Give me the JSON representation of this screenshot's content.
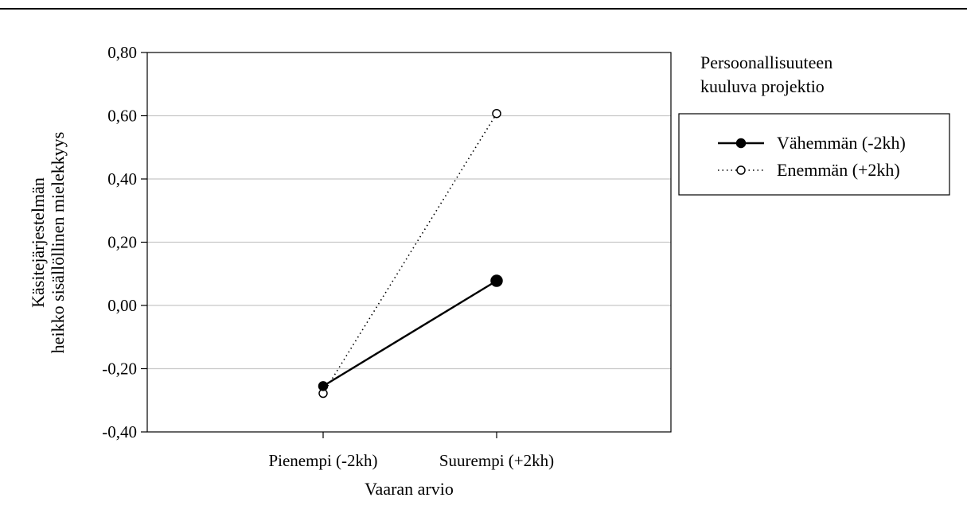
{
  "chart_data": {
    "type": "line",
    "categories": [
      "Pienempi (-2kh)",
      "Suurempi (+2kh)"
    ],
    "series": [
      {
        "name": "Vähemmän (-2kh)",
        "values": [
          -0.255,
          0.078
        ],
        "style": "solid",
        "marker": "filled-circle",
        "color": "#000000"
      },
      {
        "name": "Enemmän (+2kh)",
        "values": [
          -0.278,
          0.607
        ],
        "style": "dotted",
        "marker": "open-circle",
        "color": "#000000"
      }
    ],
    "xlabel": "Vaaran arvio",
    "ylabel_lines": [
      "Käsitejärjestelmän",
      "heikko sisällöllinen mielekkyys"
    ],
    "ylim": [
      -0.4,
      0.8
    ],
    "yticks": [
      -0.4,
      -0.2,
      0.0,
      0.2,
      0.4,
      0.6,
      0.8
    ],
    "ytick_labels": [
      "-0,40",
      "-0,20",
      "0,00",
      "0,20",
      "0,40",
      "0,60",
      "0,80"
    ],
    "grid": "horizontal",
    "legend": {
      "title_lines": [
        "Persoonallisuuteen",
        "kuuluva projektio"
      ],
      "placement": "right"
    }
  }
}
